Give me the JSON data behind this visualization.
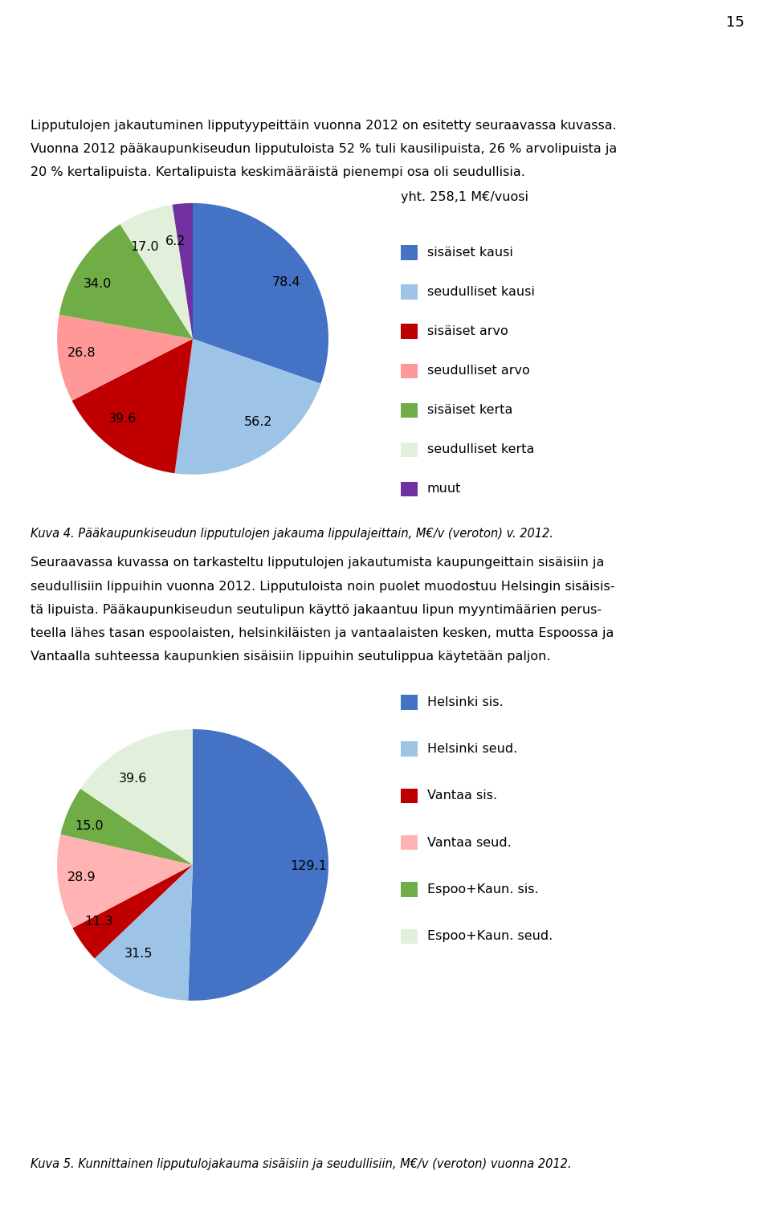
{
  "page_number": "15",
  "header_text1": "Lipputulojen jakautuminen lipputyypeittäin vuonna 2012 on esitetty seuraavassa kuvassa.",
  "header_text2": "Vuonna 2012 pääkaupunkiseudun lipputuloista 52 % tuli kausilipuista, 26 % arvolipuista ja",
  "header_text3": "20 % kertalipuista. Kertalipuista keskimääräistä pienempi osa oli seudullisia.",
  "pie1_values": [
    78.4,
    56.2,
    39.6,
    26.8,
    34.0,
    17.0,
    6.2
  ],
  "pie1_labels": [
    "78.4",
    "56.2",
    "39.6",
    "26.8",
    "34.0",
    "17.0",
    "6.2"
  ],
  "pie1_legend": [
    "sisäiset kausi",
    "seudulliset kausi",
    "sisäiset arvo",
    "seudulliset arvo",
    "sisäiset kerta",
    "seudulliset kerta",
    "muut"
  ],
  "pie1_colors": [
    "#4472C4",
    "#9DC3E6",
    "#C00000",
    "#FF9999",
    "#70AD47",
    "#E2EFDA",
    "#7030A0"
  ],
  "pie1_total": "yht. 258,1 M€/vuosi",
  "caption1": "Kuva 4. Pääkaupunkiseudun lipputulojen jakauma lippulajeittain, M€/v (veroton) v. 2012.",
  "middle_text1": "Seuraavassa kuvassa on tarkasteltu lipputulojen jakautumista kaupungeittain sisäisiin ja",
  "middle_text2": "seudullisiin lippuihin vuonna 2012. Lipputuloista noin puolet muodostuu Helsingin sisäisis-",
  "middle_text3": "tä lipuista. Pääkaupunkiseudun seutulipun käyttö jakaantuu lipun myyntimäärien perus-",
  "middle_text4": "teella lähes tasan espoolaisten, helsinkiläisten ja vantaalaisten kesken, mutta Espoossa ja",
  "middle_text5": "Vantaalla suhteessa kaupunkien sisäisiin lippuihin seutulippua käytetään paljon.",
  "pie2_values": [
    129.1,
    31.5,
    11.3,
    28.9,
    15.0,
    39.6
  ],
  "pie2_labels": [
    "129.1",
    "31.5",
    "11.3",
    "28.9",
    "15.0",
    "39.6"
  ],
  "pie2_legend": [
    "Helsinki sis.",
    "Helsinki seud.",
    "Vantaa sis.",
    "Vantaa seud.",
    "Espoo+Kaun. sis.",
    "Espoo+Kaun. seud."
  ],
  "pie2_colors": [
    "#4472C4",
    "#9DC3E6",
    "#C00000",
    "#FFB3B3",
    "#70AD47",
    "#E2EFDA"
  ],
  "caption2": "Kuva 5. Kunnittainen lipputulojakauma sisäisiin ja seudullisiin, M€/v (veroton) vuonna 2012.",
  "bg_color": "#FFFFFF",
  "text_color": "#000000",
  "font_size_body": 11.5,
  "font_size_caption": 10.5,
  "font_size_legend": 11.5,
  "font_size_label": 11.5,
  "font_size_total": 11.5,
  "font_size_pagenum": 13
}
